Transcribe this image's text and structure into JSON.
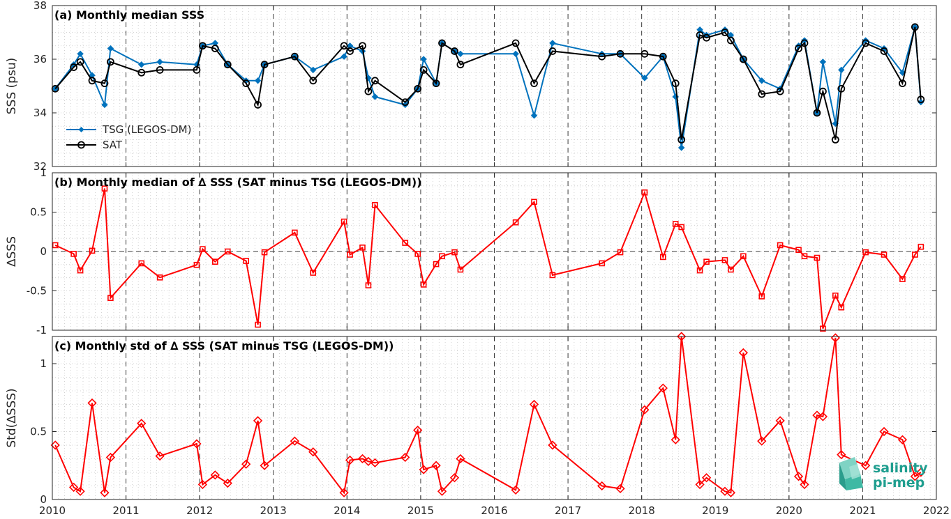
{
  "chart_data": [
    {
      "type": "line",
      "title": "(a) Monthly median SSS",
      "ylabel": "SSS (psu)",
      "xlabel": "",
      "ylim": [
        32,
        38
      ],
      "yticks": [
        32,
        34,
        36,
        38
      ],
      "xlim": [
        2010,
        2022
      ],
      "xticks": [
        2010,
        2011,
        2012,
        2013,
        2014,
        2015,
        2016,
        2017,
        2018,
        2019,
        2020,
        2021,
        2022
      ],
      "legend": "bottom-left",
      "grid": true,
      "series": [
        {
          "name": "TSG (LEGOS-DM)",
          "color": "#0072bd",
          "marker": "diamond",
          "x": [
            2010.04,
            2010.29,
            2010.38,
            2010.54,
            2010.71,
            2010.79,
            2011.21,
            2011.46,
            2011.96,
            2012.04,
            2012.21,
            2012.38,
            2012.63,
            2012.79,
            2012.88,
            2013.29,
            2013.54,
            2013.96,
            2014.04,
            2014.21,
            2014.29,
            2014.38,
            2014.79,
            2014.96,
            2015.04,
            2015.21,
            2015.29,
            2015.46,
            2015.54,
            2016.29,
            2016.54,
            2016.79,
            2017.46,
            2017.71,
            2018.04,
            2018.29,
            2018.46,
            2018.54,
            2018.79,
            2018.88,
            2019.13,
            2019.21,
            2019.38,
            2019.63,
            2019.88,
            2020.13,
            2020.21,
            2020.38,
            2020.46,
            2020.63,
            2020.71,
            2021.04,
            2021.29,
            2021.54,
            2021.71,
            2021.79
          ],
          "values": [
            34.9,
            35.8,
            36.2,
            35.4,
            34.3,
            36.4,
            35.8,
            35.9,
            35.8,
            36.5,
            36.6,
            35.8,
            35.2,
            35.2,
            35.8,
            36.1,
            35.6,
            36.1,
            36.5,
            36.3,
            35.3,
            34.6,
            34.3,
            34.9,
            36.0,
            35.1,
            36.6,
            36.3,
            36.2,
            36.2,
            33.9,
            36.6,
            36.2,
            36.2,
            35.3,
            36.1,
            34.6,
            32.7,
            37.1,
            36.9,
            37.1,
            36.9,
            36.0,
            35.2,
            34.9,
            36.5,
            36.7,
            34.0,
            35.9,
            33.6,
            35.6,
            36.7,
            36.4,
            35.5,
            37.2,
            34.4
          ]
        },
        {
          "name": "SAT",
          "color": "#000000",
          "marker": "circle",
          "x": [
            2010.04,
            2010.29,
            2010.38,
            2010.54,
            2010.71,
            2010.79,
            2011.21,
            2011.46,
            2011.96,
            2012.04,
            2012.21,
            2012.38,
            2012.63,
            2012.79,
            2012.88,
            2013.29,
            2013.54,
            2013.96,
            2014.04,
            2014.21,
            2014.29,
            2014.38,
            2014.79,
            2014.96,
            2015.04,
            2015.21,
            2015.29,
            2015.46,
            2015.54,
            2016.29,
            2016.54,
            2016.79,
            2017.46,
            2017.71,
            2018.04,
            2018.29,
            2018.46,
            2018.54,
            2018.79,
            2018.88,
            2019.13,
            2019.21,
            2019.38,
            2019.63,
            2019.88,
            2020.13,
            2020.21,
            2020.38,
            2020.46,
            2020.63,
            2020.71,
            2021.04,
            2021.29,
            2021.54,
            2021.71,
            2021.79
          ],
          "values": [
            34.9,
            35.7,
            35.9,
            35.2,
            35.1,
            35.9,
            35.5,
            35.6,
            35.6,
            36.5,
            36.4,
            35.8,
            35.1,
            34.3,
            35.8,
            36.1,
            35.2,
            36.5,
            36.3,
            36.5,
            34.8,
            35.2,
            34.4,
            34.9,
            35.6,
            35.1,
            36.6,
            36.3,
            35.8,
            36.6,
            35.1,
            36.3,
            36.1,
            36.2,
            36.2,
            36.1,
            35.1,
            33.0,
            36.9,
            36.8,
            37.0,
            36.7,
            36.0,
            34.7,
            34.8,
            36.4,
            36.6,
            34.0,
            34.8,
            33.0,
            34.9,
            36.6,
            36.3,
            35.1,
            37.2,
            34.5
          ]
        }
      ]
    },
    {
      "type": "line",
      "title": "(b) Monthly median of ∆ SSS (SAT minus TSG (LEGOS-DM))",
      "ylabel": "∆SSS",
      "xlabel": "",
      "ylim": [
        -1,
        1
      ],
      "yticks": [
        -1,
        -0.5,
        0,
        0.5,
        1
      ],
      "ytick_labels": [
        "-1",
        "-0.5",
        "0",
        "0.5",
        "1"
      ],
      "xlim": [
        2010,
        2022
      ],
      "zero_line": true,
      "grid": true,
      "series": [
        {
          "color": "#ff0000",
          "marker": "square",
          "x": [
            2010.04,
            2010.29,
            2010.38,
            2010.54,
            2010.71,
            2010.79,
            2011.21,
            2011.46,
            2011.96,
            2012.04,
            2012.21,
            2012.38,
            2012.63,
            2012.79,
            2012.88,
            2013.29,
            2013.54,
            2013.96,
            2014.04,
            2014.21,
            2014.29,
            2014.38,
            2014.79,
            2014.96,
            2015.04,
            2015.21,
            2015.29,
            2015.46,
            2015.54,
            2016.29,
            2016.54,
            2016.79,
            2017.46,
            2017.71,
            2018.04,
            2018.29,
            2018.46,
            2018.54,
            2018.79,
            2018.88,
            2019.13,
            2019.21,
            2019.38,
            2019.63,
            2019.88,
            2020.13,
            2020.21,
            2020.38,
            2020.46,
            2020.63,
            2020.71,
            2021.04,
            2021.29,
            2021.54,
            2021.71,
            2021.79
          ],
          "values": [
            0.08,
            -0.03,
            -0.24,
            0.01,
            0.8,
            -0.59,
            -0.15,
            -0.33,
            -0.17,
            0.03,
            -0.13,
            0.0,
            -0.12,
            -0.93,
            -0.01,
            0.24,
            -0.27,
            0.38,
            -0.04,
            0.05,
            -0.43,
            0.59,
            0.11,
            -0.03,
            -0.42,
            -0.16,
            -0.06,
            -0.01,
            -0.23,
            0.37,
            0.63,
            -0.3,
            -0.15,
            -0.01,
            0.75,
            -0.07,
            0.35,
            0.31,
            -0.24,
            -0.13,
            -0.11,
            -0.23,
            -0.06,
            -0.57,
            0.08,
            0.02,
            -0.06,
            -0.08,
            -0.98,
            -0.56,
            -0.71,
            -0.01,
            -0.04,
            -0.35,
            -0.04,
            0.06
          ]
        }
      ]
    },
    {
      "type": "line",
      "title": "(c) Monthly std of ∆ SSS (SAT minus TSG (LEGOS-DM))",
      "ylabel": "Std(∆SSS)",
      "xlabel": "",
      "ylim": [
        0,
        1.2
      ],
      "yticks": [
        0,
        0.5,
        1
      ],
      "ytick_labels": [
        "0",
        "0.5",
        "1"
      ],
      "xlim": [
        2010,
        2022
      ],
      "xticks": [
        2010,
        2011,
        2012,
        2013,
        2014,
        2015,
        2016,
        2017,
        2018,
        2019,
        2020,
        2021,
        2022
      ],
      "xtick_labels": [
        "2010",
        "2011",
        "2012",
        "2013",
        "2014",
        "2015",
        "2016",
        "2017",
        "2018",
        "2019",
        "2020",
        "2021",
        "2022"
      ],
      "grid": true,
      "series": [
        {
          "color": "#ff0000",
          "marker": "diamond",
          "x": [
            2010.04,
            2010.29,
            2010.38,
            2010.54,
            2010.71,
            2010.79,
            2011.21,
            2011.46,
            2011.96,
            2012.04,
            2012.21,
            2012.38,
            2012.63,
            2012.79,
            2012.88,
            2013.29,
            2013.54,
            2013.96,
            2014.04,
            2014.21,
            2014.29,
            2014.38,
            2014.79,
            2014.96,
            2015.04,
            2015.21,
            2015.29,
            2015.46,
            2015.54,
            2016.29,
            2016.54,
            2016.79,
            2017.46,
            2017.71,
            2018.04,
            2018.29,
            2018.46,
            2018.54,
            2018.79,
            2018.88,
            2019.13,
            2019.21,
            2019.38,
            2019.63,
            2019.88,
            2020.13,
            2020.21,
            2020.38,
            2020.46,
            2020.63,
            2020.71,
            2021.04,
            2021.29,
            2021.54,
            2021.71,
            2021.79
          ],
          "values": [
            0.4,
            0.09,
            0.06,
            0.71,
            0.05,
            0.31,
            0.56,
            0.32,
            0.41,
            0.11,
            0.18,
            0.12,
            0.26,
            0.58,
            0.25,
            0.43,
            0.35,
            0.05,
            0.29,
            0.3,
            0.28,
            0.27,
            0.31,
            0.51,
            0.22,
            0.25,
            0.06,
            0.16,
            0.3,
            0.07,
            0.7,
            0.4,
            0.1,
            0.08,
            0.66,
            0.82,
            0.44,
            1.2,
            0.11,
            0.16,
            0.06,
            0.05,
            1.08,
            0.43,
            0.58,
            0.17,
            0.11,
            0.62,
            0.61,
            1.19,
            0.33,
            0.25,
            0.5,
            0.44,
            0.17,
            0.2
          ]
        }
      ]
    }
  ],
  "logo": {
    "line1": "salinity",
    "line2": "pi-mep",
    "color_line1": "#1f9e8f",
    "color_line2": "#1f9e8f"
  }
}
